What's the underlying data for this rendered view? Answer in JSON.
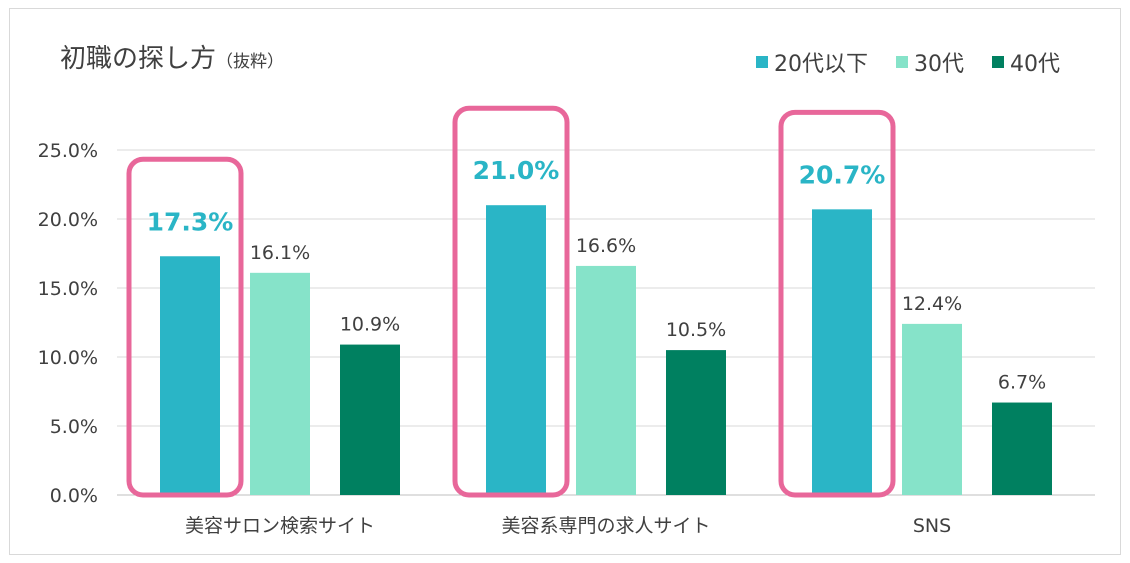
{
  "chart_data": {
    "type": "bar",
    "title": "初職の探し方",
    "subtitle": "（抜粋）",
    "categories": [
      "美容サロン検索サイト",
      "美容系専門の求人サイト",
      "SNS"
    ],
    "series": [
      {
        "name": "20代以下",
        "values": [
          17.3,
          21.0,
          20.7
        ],
        "color": "#2ab5c6"
      },
      {
        "name": "30代",
        "values": [
          16.1,
          16.6,
          12.4
        ],
        "color": "#86e3c9"
      },
      {
        "name": "40代",
        "values": [
          10.9,
          10.5,
          6.7
        ],
        "color": "#008060"
      }
    ],
    "data_labels": [
      [
        "17.3%",
        "16.1%",
        "10.9%"
      ],
      [
        "21.0%",
        "16.6%",
        "10.5%"
      ],
      [
        "20.7%",
        "12.4%",
        "6.7%"
      ]
    ],
    "y_ticks": [
      "0.0%",
      "5.0%",
      "10.0%",
      "15.0%",
      "20.0%",
      "25.0%"
    ],
    "ylim": [
      0,
      25
    ],
    "grid": true,
    "legend_position": "top-right",
    "highlight_color": "#e8679a",
    "highlight_series": "20代以下"
  }
}
